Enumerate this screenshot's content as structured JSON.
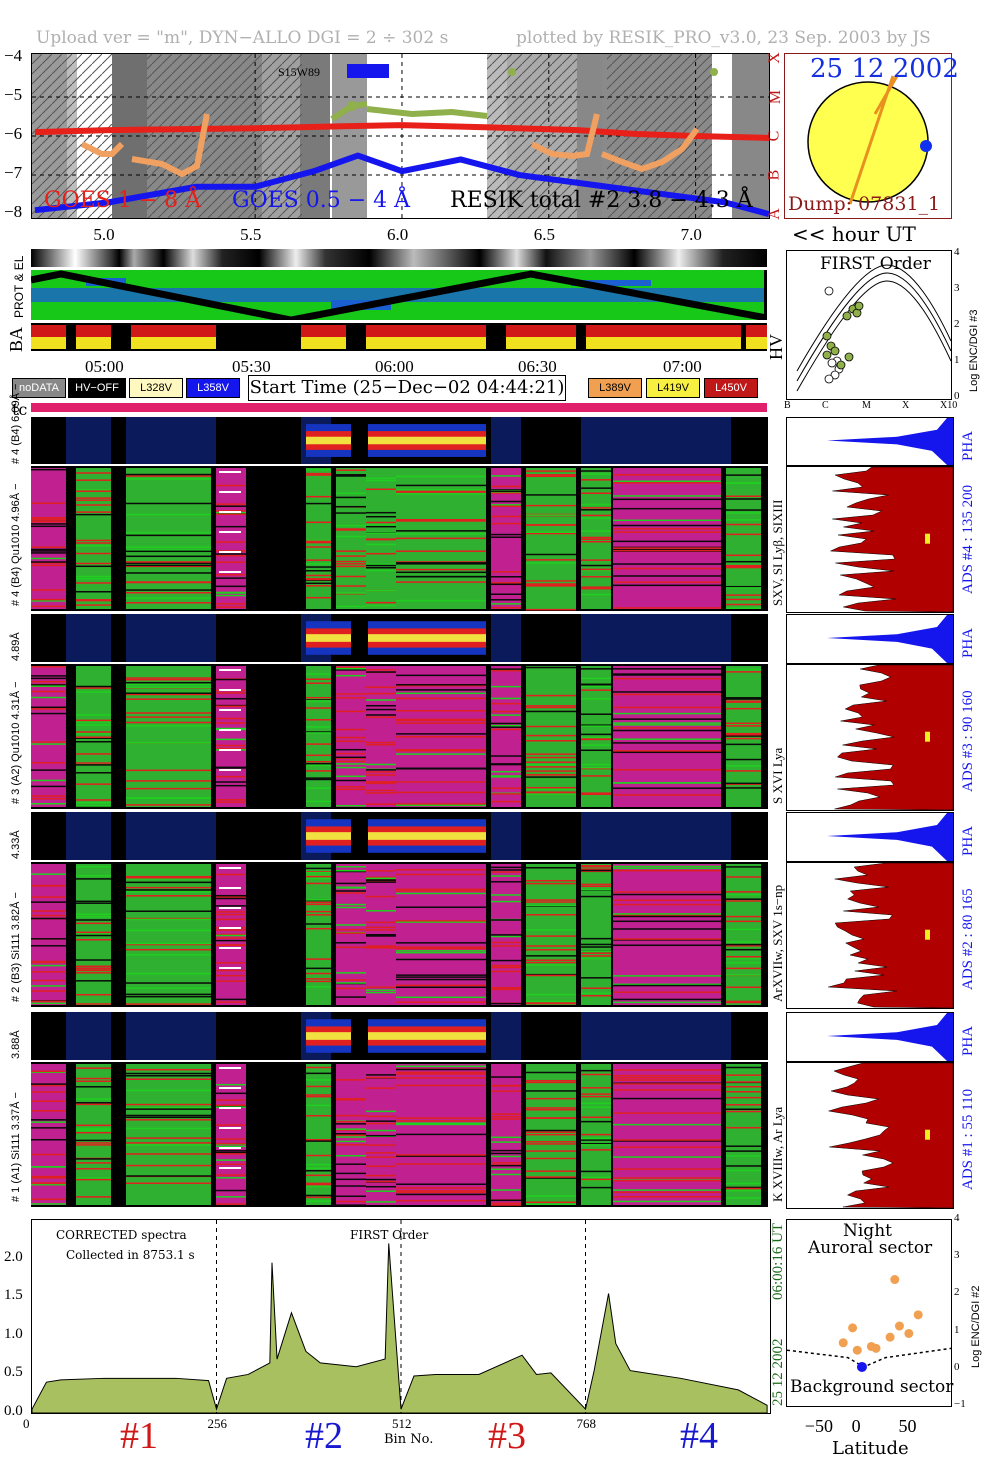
{
  "header": {
    "left": "Upload ver = \"m\", DYN−ALLO DGI =   2 ÷ 302 s",
    "right": "plotted by RESIK_PRO_v3.0, 23 Sep. 2003 by JS"
  },
  "goes": {
    "yticks": [
      "−4",
      "−5",
      "−6",
      "−7",
      "−8"
    ],
    "class_letters": [
      "X",
      "M",
      "C",
      "B",
      "A"
    ],
    "xticks": [
      "5.0",
      "5.5",
      "6.0",
      "6.5",
      "7.0"
    ],
    "legend_goes18": "GOES 1 − 8 Å",
    "legend_goes054": "GOES 0.5 − 4 Å",
    "legend_resik": "RESIK total #2  3.8 − 4.3 Å",
    "flare_label": "S15W89",
    "hour_label": "<< hour UT",
    "colors": {
      "goes18": "#e8201a",
      "goes054": "#1515ee",
      "resik": "#8fb04a",
      "resik_low": "#f0a060"
    }
  },
  "sun": {
    "date": "25 12 2002",
    "dump": "Dump: 07831_1"
  },
  "prot": {
    "label": "PROT & EL",
    "ba_label": "BA",
    "hv_label": "HV"
  },
  "time_axis": {
    "ticks": [
      "05:00",
      "05:30",
      "06:00",
      "06:30",
      "07:00"
    ],
    "start_time": "Start Time (25−Dec−02 04:44:21)"
  },
  "legend": {
    "nodata": "noDATA",
    "hvoff": "HV−OFF",
    "l328": "L328V",
    "l358": "L358V",
    "l389": "L389V",
    "l419": "L419V",
    "l450": "L450V",
    "tc": "tc"
  },
  "first_order": {
    "title": "FIRST Order",
    "ylabel": "Log ENC/DGI #3",
    "yticks": [
      "4",
      "3",
      "2",
      "1",
      "0"
    ],
    "xticks": [
      "B",
      "C",
      "M",
      "X",
      "X10"
    ]
  },
  "channels": [
    {
      "pha_label": "# 4 (B4) 6.09Å −",
      "label": "# 4 (B4) Qu1010 4.96Å −",
      "lines": "SXV, SI Lyβ, SIXIII",
      "ads": "ADS #4 :   135 200"
    },
    {
      "pha_label": "4.89Å",
      "label": "# 3 (A2) Qu1010  4.31Å −",
      "lines": "S XVI Lya",
      "ads": "ADS #3 :   90 160"
    },
    {
      "pha_label": "4.33Å",
      "label": "# 2 (B3) Si111  3.82Å −",
      "lines": "ArXVIIw, SXV 1s−np",
      "ads": "ADS #2 :   80 165"
    },
    {
      "pha_label": "3.88Å",
      "label": "# 1 (A1) Si111  3.37Å −",
      "lines": "K XVIIIw, Ar Lya",
      "ads": "ADS #1 :   55 110"
    }
  ],
  "pha_label": "PHA",
  "spectrum": {
    "title1": "CORRECTED spectra",
    "title2": "Collected in  8753.1 s",
    "title3": "FIRST Order",
    "yticks": [
      "2.0",
      "1.5",
      "1.0",
      "0.5",
      "0.0"
    ],
    "xticks": [
      "0",
      "256",
      "512",
      "768"
    ],
    "xlabel": "Bin No.",
    "date_vert": "25 12 2002",
    "time_vert": "06:00:16 UT",
    "channel_labels": [
      "#1",
      "#2",
      "#3",
      "#4"
    ],
    "channel_colors": [
      "#d01818",
      "#1818d0",
      "#d01818",
      "#1818d0"
    ]
  },
  "auroral": {
    "title1": "Night",
    "title2": "Auroral sector",
    "bottom": "Background sector",
    "xlabel": "Latitude",
    "xticks": [
      "−50",
      "0",
      "50"
    ],
    "yticks": [
      "4",
      "3",
      "2",
      "1",
      "0",
      "−1"
    ],
    "ylabel": "Log ENC/DGI #2"
  },
  "chart_data": [
    {
      "type": "line",
      "title": "",
      "xlabel": "hour UT",
      "ylabel": "",
      "xlim": [
        4.74,
        7.25
      ],
      "ylim": [
        -8.1,
        -3.9
      ],
      "series": [
        {
          "name": "GOES 1 − 8 Å",
          "x": [
            4.75,
            5.0,
            5.5,
            5.8,
            6.0,
            6.3,
            6.6,
            6.8,
            7.0,
            7.25
          ],
          "y": [
            -5.9,
            -5.85,
            -5.8,
            -5.75,
            -5.72,
            -5.78,
            -5.85,
            -5.95,
            -6.0,
            -6.05
          ]
        },
        {
          "name": "GOES 0.5 − 4 Å",
          "x": [
            4.75,
            5.0,
            5.3,
            5.5,
            5.7,
            5.85,
            6.0,
            6.2,
            6.4,
            6.6,
            6.9,
            7.1,
            7.25
          ],
          "y": [
            -7.9,
            -7.7,
            -7.3,
            -7.3,
            -6.9,
            -6.5,
            -6.9,
            -6.6,
            -7.0,
            -7.2,
            -7.5,
            -7.7,
            -8.0
          ]
        }
      ]
    },
    {
      "type": "area",
      "title": "CORRECTED spectra",
      "xlabel": "Bin No.",
      "ylabel": "",
      "xlim": [
        0,
        1024
      ],
      "ylim": [
        0,
        2.4
      ],
      "x": [
        0,
        20,
        40,
        100,
        200,
        245,
        256,
        270,
        300,
        330,
        333,
        340,
        360,
        380,
        400,
        450,
        490,
        495,
        512,
        530,
        560,
        620,
        680,
        700,
        720,
        768,
        780,
        800,
        810,
        830,
        900,
        980,
        1020
      ],
      "values": [
        0.05,
        0.4,
        0.43,
        0.45,
        0.45,
        0.42,
        0.05,
        0.45,
        0.5,
        0.65,
        1.95,
        0.7,
        1.3,
        0.8,
        0.65,
        0.6,
        0.7,
        2.2,
        0.05,
        0.48,
        0.5,
        0.5,
        0.75,
        0.5,
        0.52,
        0.05,
        0.55,
        1.55,
        0.9,
        0.55,
        0.45,
        0.3,
        0.1
      ]
    },
    {
      "type": "scatter",
      "title": "",
      "xlabel": "Latitude",
      "ylabel": "Log ENC/DGI #2",
      "xlim": [
        -85,
        90
      ],
      "ylim": [
        -1,
        4
      ],
      "x": [
        -25,
        -15,
        -10,
        5,
        10,
        25,
        30,
        35,
        45,
        55
      ],
      "y": [
        0.7,
        1.1,
        0.5,
        0.6,
        0.55,
        0.85,
        2.4,
        1.15,
        0.95,
        1.45
      ]
    }
  ]
}
